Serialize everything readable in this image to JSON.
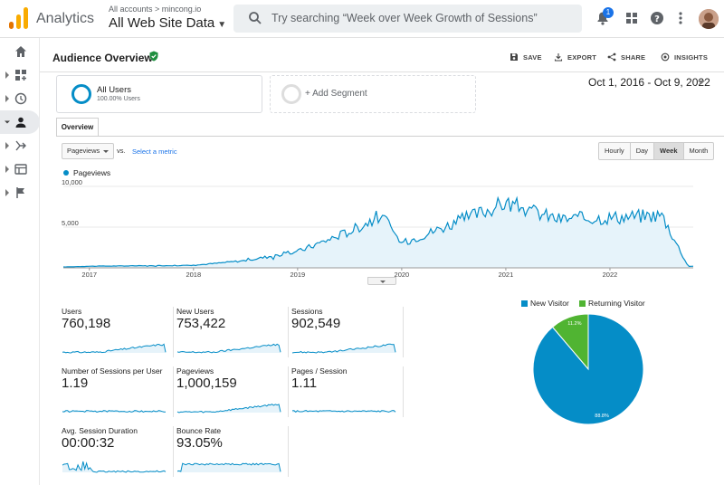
{
  "header": {
    "app_name": "Analytics",
    "account_path": "All accounts > mincong.io",
    "view_name": "All Web Site Data",
    "search_placeholder": "Try searching “Week over Week Growth of Sessions”",
    "notification_count": "1"
  },
  "page": {
    "title": "Audience Overview",
    "actions": {
      "save": "SAVE",
      "export": "EXPORT",
      "share": "SHARE",
      "insights": "INSIGHTS"
    },
    "segments": {
      "all_users": "All Users",
      "all_users_sub": "100.00% Users",
      "add_segment": "+ Add Segment"
    },
    "date_range": "Oct 1, 2016 - Oct 9, 2022",
    "tab_overview": "Overview",
    "metric_selector": "Pageviews",
    "vs_label": "vs.",
    "select_metric": "Select a metric",
    "granularity": [
      "Hourly",
      "Day",
      "Week",
      "Month"
    ],
    "granularity_active": "Week"
  },
  "chart_data": [
    {
      "type": "area",
      "series": [
        {
          "name": "Pageviews",
          "color": "#058dc7"
        }
      ],
      "yticks": [
        "10,000",
        "5,000"
      ],
      "ylim": [
        0,
        10000
      ],
      "xticks": [
        "2017",
        "2018",
        "2019",
        "2020",
        "2021",
        "2022"
      ],
      "x": [
        "2016",
        "2017",
        "2018",
        "2018.5",
        "2019",
        "2019.5",
        "2019.8",
        "2020",
        "2020.5",
        "2021",
        "2021.5",
        "2022",
        "2022.5",
        "2022.75"
      ],
      "values": [
        100,
        200,
        300,
        900,
        2000,
        4500,
        6500,
        3000,
        5500,
        8000,
        6000,
        6200,
        6500,
        200
      ]
    },
    {
      "type": "pie",
      "legend": [
        {
          "name": "New Visitor",
          "color": "#058dc7"
        },
        {
          "name": "Returning Visitor",
          "color": "#50b432"
        }
      ],
      "values": [
        88.8,
        11.2
      ],
      "labels": [
        "88.8%",
        "11.2%"
      ]
    }
  ],
  "metrics": [
    {
      "label": "Users",
      "value": "760,198"
    },
    {
      "label": "New Users",
      "value": "753,422"
    },
    {
      "label": "Sessions",
      "value": "902,549"
    },
    {
      "label": "Number of Sessions per User",
      "value": "1.19"
    },
    {
      "label": "Pageviews",
      "value": "1,000,159"
    },
    {
      "label": "Pages / Session",
      "value": "1.11"
    },
    {
      "label": "Avg. Session Duration",
      "value": "00:00:32"
    },
    {
      "label": "Bounce Rate",
      "value": "93.05%"
    }
  ],
  "colors": {
    "accent": "#058dc7",
    "returning": "#50b432",
    "verified": "#1e8e3e"
  }
}
